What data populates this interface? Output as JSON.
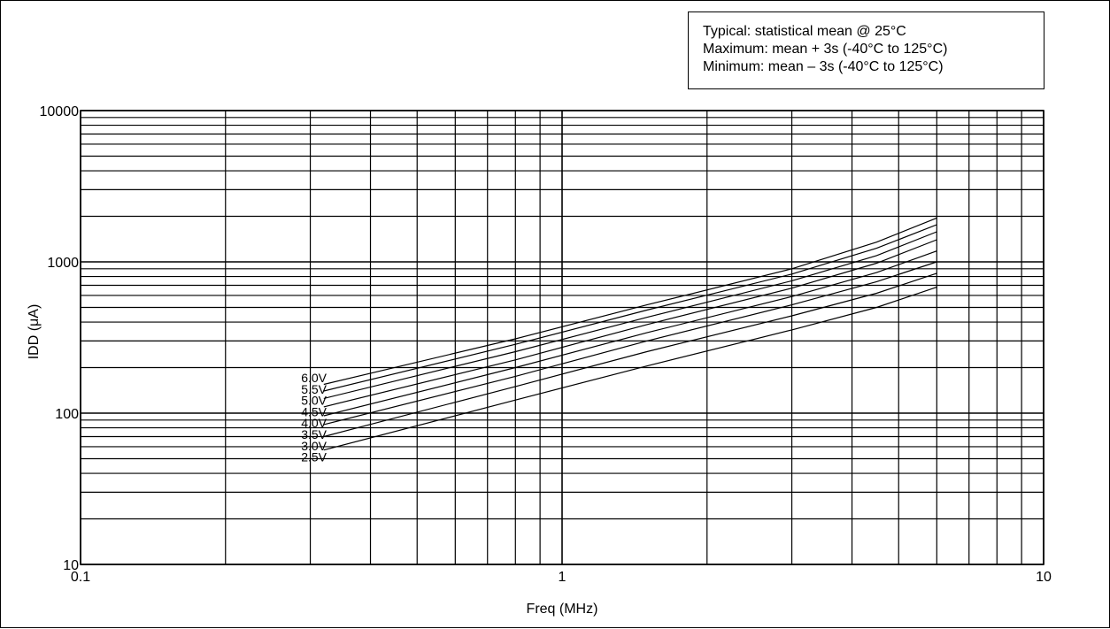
{
  "chart_data": {
    "type": "line",
    "x_scale": "log",
    "y_scale": "log",
    "xlim": [
      0.1,
      10
    ],
    "ylim": [
      10,
      10000
    ],
    "x_ticks": [
      0.1,
      1,
      10
    ],
    "x_tick_labels": [
      "0.1",
      "1",
      "10"
    ],
    "y_ticks": [
      10,
      100,
      1000,
      10000
    ],
    "y_tick_labels": [
      "10",
      "100",
      "1000",
      "10000"
    ],
    "xlabel": "Freq (MHz)",
    "ylabel": "IDD (μA)",
    "grid": true,
    "annotations": [
      "Typical:  statistical mean @ 25°C",
      "Maximum:  mean + 3s (-40°C to 125°C)",
      "Minimum:   mean – 3s (-40°C to 125°C)"
    ],
    "series": [
      {
        "name": "6.0V",
        "x": [
          0.32,
          0.8,
          1.5,
          3.0,
          4.5,
          6.0
        ],
        "y": [
          155,
          310,
          520,
          900,
          1350,
          1950
        ]
      },
      {
        "name": "5.5V",
        "x": [
          0.32,
          0.8,
          1.5,
          3.0,
          4.5,
          6.0
        ],
        "y": [
          140,
          285,
          480,
          830,
          1230,
          1760
        ]
      },
      {
        "name": "5.0V",
        "x": [
          0.32,
          0.8,
          1.5,
          3.0,
          4.5,
          6.0
        ],
        "y": [
          125,
          255,
          430,
          750,
          1100,
          1580
        ]
      },
      {
        "name": "4.5V",
        "x": [
          0.32,
          0.8,
          1.5,
          3.0,
          4.5,
          6.0
        ],
        "y": [
          110,
          225,
          385,
          670,
          980,
          1400
        ]
      },
      {
        "name": "4.0V",
        "x": [
          0.32,
          0.8,
          1.5,
          3.0,
          4.5,
          6.0
        ],
        "y": [
          96,
          200,
          340,
          590,
          850,
          1180
        ]
      },
      {
        "name": "3.5V",
        "x": [
          0.32,
          0.8,
          1.5,
          3.0,
          4.5,
          6.0
        ],
        "y": [
          84,
          175,
          300,
          520,
          740,
          1000
        ]
      },
      {
        "name": "3.0V",
        "x": [
          0.32,
          0.8,
          1.5,
          3.0,
          4.5,
          6.0
        ],
        "y": [
          70,
          150,
          255,
          440,
          620,
          840
        ]
      },
      {
        "name": "2.5V",
        "x": [
          0.32,
          0.8,
          1.5,
          3.0,
          4.5,
          6.0
        ],
        "y": [
          57,
          122,
          205,
          355,
          500,
          680
        ]
      }
    ]
  }
}
